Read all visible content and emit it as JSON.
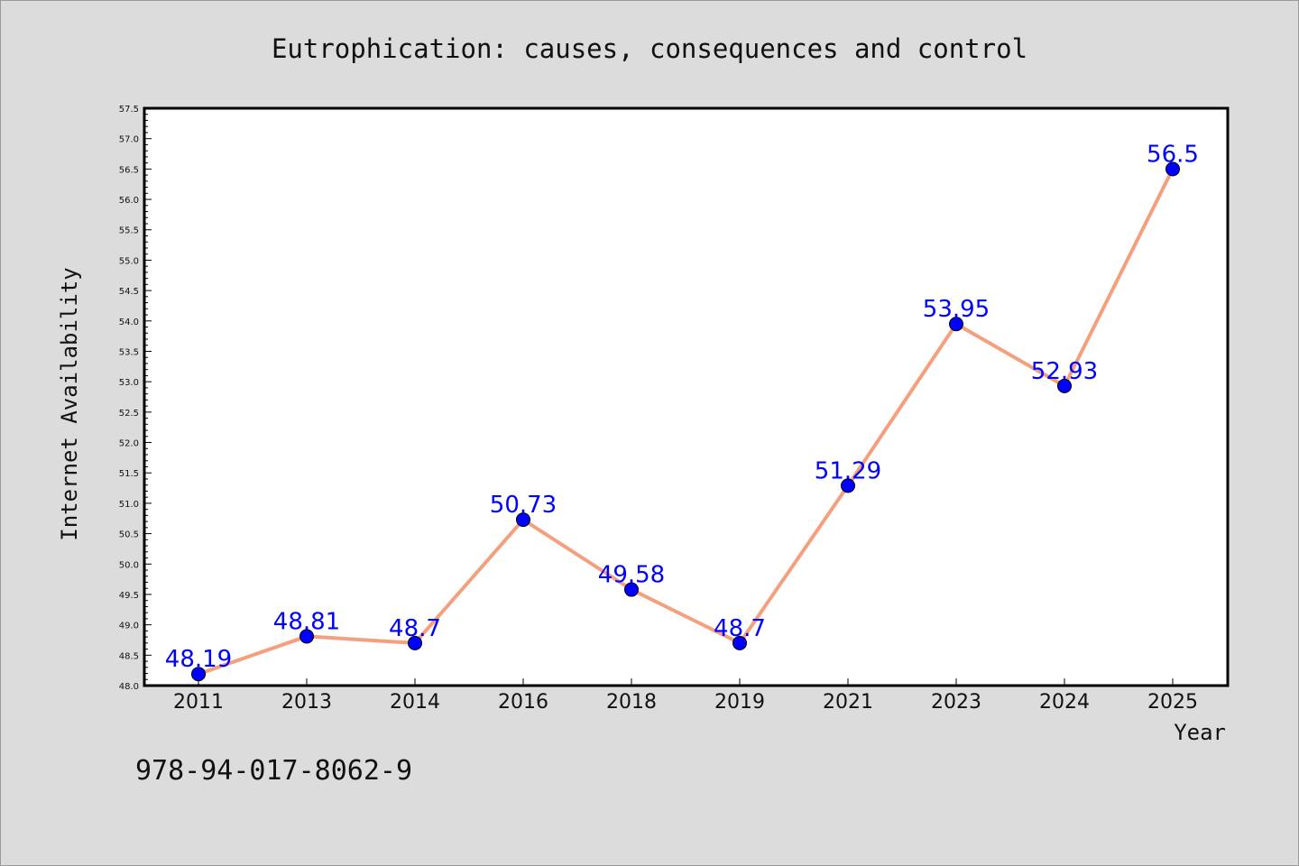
{
  "chart_data": {
    "type": "line",
    "title": "Eutrophication: causes, consequences and control",
    "xlabel": "Year",
    "ylabel": "Internet Availability",
    "categories": [
      "2011",
      "2013",
      "2014",
      "2016",
      "2018",
      "2019",
      "2021",
      "2023",
      "2024",
      "2025"
    ],
    "series": [
      {
        "values": [
          48.19,
          48.81,
          48.7,
          50.73,
          49.58,
          48.7,
          51.29,
          53.95,
          52.93,
          56.5
        ],
        "data_labels": [
          "48.19",
          "48.81",
          "48.7",
          "50.73",
          "49.58",
          "48.7",
          "51.29",
          "53.95",
          "52.93",
          "56.5"
        ],
        "line_color": "#f4a07e",
        "marker_color": "#0000ff"
      }
    ],
    "ylim": [
      48.0,
      57.5
    ],
    "yticks": [
      "48.0",
      "48.5",
      "49.0",
      "49.5",
      "50.0",
      "50.5",
      "51.0",
      "51.5",
      "52.0",
      "52.5",
      "53.0",
      "53.5",
      "54.0",
      "54.5",
      "55.0",
      "55.5",
      "56.0",
      "56.5",
      "57.0",
      "57.5"
    ],
    "grid": false,
    "legend": "none"
  },
  "footnote": "978-94-017-8062-9"
}
